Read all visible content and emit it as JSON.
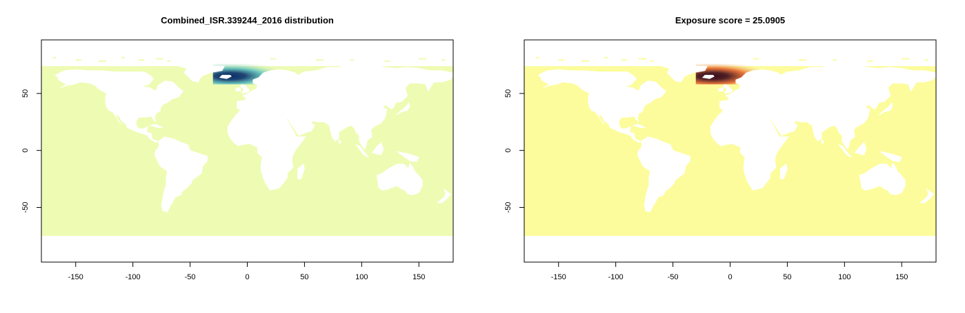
{
  "panels": [
    {
      "title": "Combined_ISR.339244_2016 distribution",
      "palette": "YlGnBu",
      "background_color": "#eefbb3",
      "x_ticks": [
        -150,
        -100,
        -50,
        0,
        50,
        100,
        150
      ],
      "y_ticks": [
        -50,
        0,
        50
      ],
      "xlim": [
        -180,
        180
      ],
      "ylim": [
        -98,
        97
      ]
    },
    {
      "title": "Exposure score = 25.0905",
      "palette": "YlOrRd",
      "background_color": "#fcfc9c",
      "x_ticks": [
        -150,
        -100,
        -50,
        0,
        50,
        100,
        150
      ],
      "y_ticks": [
        -50,
        0,
        50
      ],
      "xlim": [
        -180,
        180
      ],
      "ylim": [
        -98,
        97
      ]
    }
  ],
  "chart_data": [
    {
      "type": "heatmap",
      "title": "Combined_ISR.339244_2016 distribution",
      "xlim": [
        -180,
        180
      ],
      "ylim": [
        -98,
        97
      ],
      "x_ticks": [
        -150,
        -100,
        -50,
        0,
        50,
        100,
        150
      ],
      "y_ticks": [
        -50,
        0,
        50
      ],
      "data_extent": {
        "lon": [
          -180,
          180
        ],
        "lat": [
          -75,
          74
        ]
      },
      "hotspot": {
        "lon": [
          -30,
          45
        ],
        "lat": [
          58,
          76
        ],
        "peak": {
          "lon": -18,
          "lat": 68
        }
      },
      "colors": {
        "low": "#eefbb3",
        "mid": "#41b6c4",
        "high": "#08306b"
      }
    },
    {
      "type": "heatmap",
      "title": "Exposure score = 25.0905",
      "xlim": [
        -180,
        180
      ],
      "ylim": [
        -98,
        97
      ],
      "x_ticks": [
        -150,
        -100,
        -50,
        0,
        50,
        100,
        150
      ],
      "y_ticks": [
        -50,
        0,
        50
      ],
      "data_extent": {
        "lon": [
          -180,
          180
        ],
        "lat": [
          -75,
          74
        ]
      },
      "hotspot": {
        "lon": [
          -30,
          45
        ],
        "lat": [
          58,
          76
        ],
        "peak": {
          "lon": -18,
          "lat": 68
        }
      },
      "colors": {
        "low": "#fcfc9c",
        "mid": "#e2491c",
        "high": "#3d0a1a"
      }
    }
  ]
}
